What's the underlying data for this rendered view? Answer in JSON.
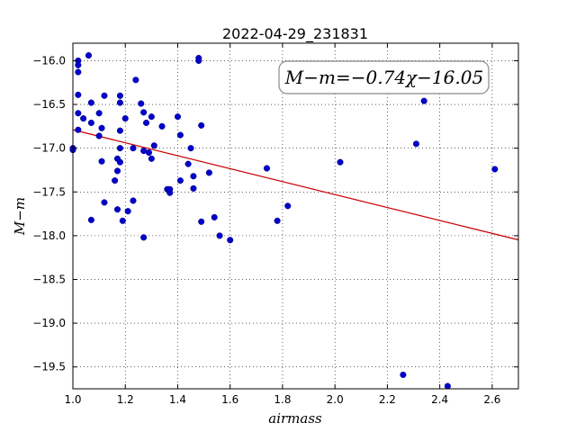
{
  "chart_data": {
    "type": "scatter",
    "title": "2022-04-29_231831",
    "xlabel": "airmass",
    "ylabel": "M−m",
    "annotation": "M−m=−0.74χ−16.05",
    "xlim": [
      1.0,
      2.7
    ],
    "ylim": [
      -19.75,
      -15.8
    ],
    "x_ticks": [
      "1.0",
      "1.2",
      "1.4",
      "1.6",
      "1.8",
      "2.0",
      "2.2",
      "2.4",
      "2.6"
    ],
    "x_tick_values": [
      1.0,
      1.2,
      1.4,
      1.6,
      1.8,
      2.0,
      2.2,
      2.4,
      2.6
    ],
    "y_ticks": [
      "−16.0",
      "−16.5",
      "−17.0",
      "−17.5",
      "−18.0",
      "−18.5",
      "−19.0",
      "−19.5"
    ],
    "y_tick_values": [
      -16.0,
      -16.5,
      -17.0,
      -17.5,
      -18.0,
      -18.5,
      -19.0,
      -19.5
    ],
    "grid": true,
    "point_color": "#0000cc",
    "fit_color": "#cc0000",
    "fit": {
      "slope": -0.74,
      "intercept": -16.05
    },
    "points": [
      {
        "x": 1.0,
        "y": -17.0
      },
      {
        "x": 1.0,
        "y": -17.02
      },
      {
        "x": 1.02,
        "y": -16.0
      },
      {
        "x": 1.02,
        "y": -16.05
      },
      {
        "x": 1.02,
        "y": -16.13
      },
      {
        "x": 1.02,
        "y": -16.39
      },
      {
        "x": 1.02,
        "y": -16.6
      },
      {
        "x": 1.02,
        "y": -16.79
      },
      {
        "x": 1.04,
        "y": -16.66
      },
      {
        "x": 1.06,
        "y": -15.94
      },
      {
        "x": 1.07,
        "y": -16.48
      },
      {
        "x": 1.07,
        "y": -16.71
      },
      {
        "x": 1.07,
        "y": -17.82
      },
      {
        "x": 1.1,
        "y": -16.6
      },
      {
        "x": 1.1,
        "y": -16.86
      },
      {
        "x": 1.11,
        "y": -17.15
      },
      {
        "x": 1.11,
        "y": -16.77
      },
      {
        "x": 1.12,
        "y": -16.4
      },
      {
        "x": 1.12,
        "y": -17.62
      },
      {
        "x": 1.16,
        "y": -17.37
      },
      {
        "x": 1.17,
        "y": -17.12
      },
      {
        "x": 1.17,
        "y": -17.26
      },
      {
        "x": 1.17,
        "y": -17.7
      },
      {
        "x": 1.18,
        "y": -17.0
      },
      {
        "x": 1.18,
        "y": -17.16
      },
      {
        "x": 1.18,
        "y": -16.8
      },
      {
        "x": 1.18,
        "y": -16.48
      },
      {
        "x": 1.18,
        "y": -16.4
      },
      {
        "x": 1.19,
        "y": -17.83
      },
      {
        "x": 1.2,
        "y": -16.66
      },
      {
        "x": 1.21,
        "y": -17.72
      },
      {
        "x": 1.23,
        "y": -17.6
      },
      {
        "x": 1.23,
        "y": -17.0
      },
      {
        "x": 1.24,
        "y": -16.22
      },
      {
        "x": 1.26,
        "y": -16.49
      },
      {
        "x": 1.27,
        "y": -16.59
      },
      {
        "x": 1.27,
        "y": -17.03
      },
      {
        "x": 1.27,
        "y": -18.02
      },
      {
        "x": 1.28,
        "y": -16.71
      },
      {
        "x": 1.29,
        "y": -17.05
      },
      {
        "x": 1.3,
        "y": -16.64
      },
      {
        "x": 1.3,
        "y": -17.12
      },
      {
        "x": 1.31,
        "y": -16.97
      },
      {
        "x": 1.34,
        "y": -16.75
      },
      {
        "x": 1.36,
        "y": -17.47
      },
      {
        "x": 1.37,
        "y": -17.51
      },
      {
        "x": 1.37,
        "y": -17.47
      },
      {
        "x": 1.4,
        "y": -16.64
      },
      {
        "x": 1.41,
        "y": -16.85
      },
      {
        "x": 1.41,
        "y": -17.37
      },
      {
        "x": 1.44,
        "y": -17.18
      },
      {
        "x": 1.45,
        "y": -17.0
      },
      {
        "x": 1.46,
        "y": -17.32
      },
      {
        "x": 1.46,
        "y": -17.46
      },
      {
        "x": 1.48,
        "y": -15.97
      },
      {
        "x": 1.48,
        "y": -16.0
      },
      {
        "x": 1.49,
        "y": -16.74
      },
      {
        "x": 1.49,
        "y": -17.84
      },
      {
        "x": 1.52,
        "y": -17.28
      },
      {
        "x": 1.54,
        "y": -17.79
      },
      {
        "x": 1.56,
        "y": -18.0
      },
      {
        "x": 1.6,
        "y": -18.05
      },
      {
        "x": 1.74,
        "y": -17.23
      },
      {
        "x": 1.78,
        "y": -17.83
      },
      {
        "x": 1.82,
        "y": -17.66
      },
      {
        "x": 2.02,
        "y": -17.16
      },
      {
        "x": 2.26,
        "y": -19.59
      },
      {
        "x": 2.31,
        "y": -16.95
      },
      {
        "x": 2.34,
        "y": -16.46
      },
      {
        "x": 2.43,
        "y": -19.72
      },
      {
        "x": 2.61,
        "y": -17.24
      }
    ]
  }
}
